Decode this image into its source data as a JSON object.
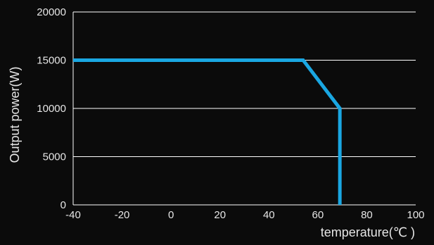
{
  "colors": {
    "background": "#0b0b0b",
    "axis": "#ffffff",
    "grid": "#ffffff",
    "text": "#e6e6e6",
    "series": "#1aa7e2"
  },
  "chart_data": {
    "type": "line",
    "title": "",
    "xlabel": "temperature(℃ )",
    "ylabel": "Output power(W)",
    "xlim": [
      -40,
      100
    ],
    "ylim": [
      0,
      20000
    ],
    "x_ticks": [
      -40,
      -20,
      0,
      20,
      40,
      60,
      80,
      100
    ],
    "y_ticks": [
      0,
      5000,
      10000,
      15000,
      20000
    ],
    "x_tick_labels": [
      "-40",
      "-20",
      "0",
      "20",
      "40",
      "60",
      "80",
      "100"
    ],
    "y_tick_labels": [
      "0",
      "5000",
      "10000",
      "15000",
      "20000"
    ],
    "grid": "horizontal",
    "legend": "none",
    "series": [
      {
        "x": [
          -40,
          54,
          69,
          69
        ],
        "y": [
          15000,
          15000,
          10000,
          0
        ]
      }
    ]
  }
}
